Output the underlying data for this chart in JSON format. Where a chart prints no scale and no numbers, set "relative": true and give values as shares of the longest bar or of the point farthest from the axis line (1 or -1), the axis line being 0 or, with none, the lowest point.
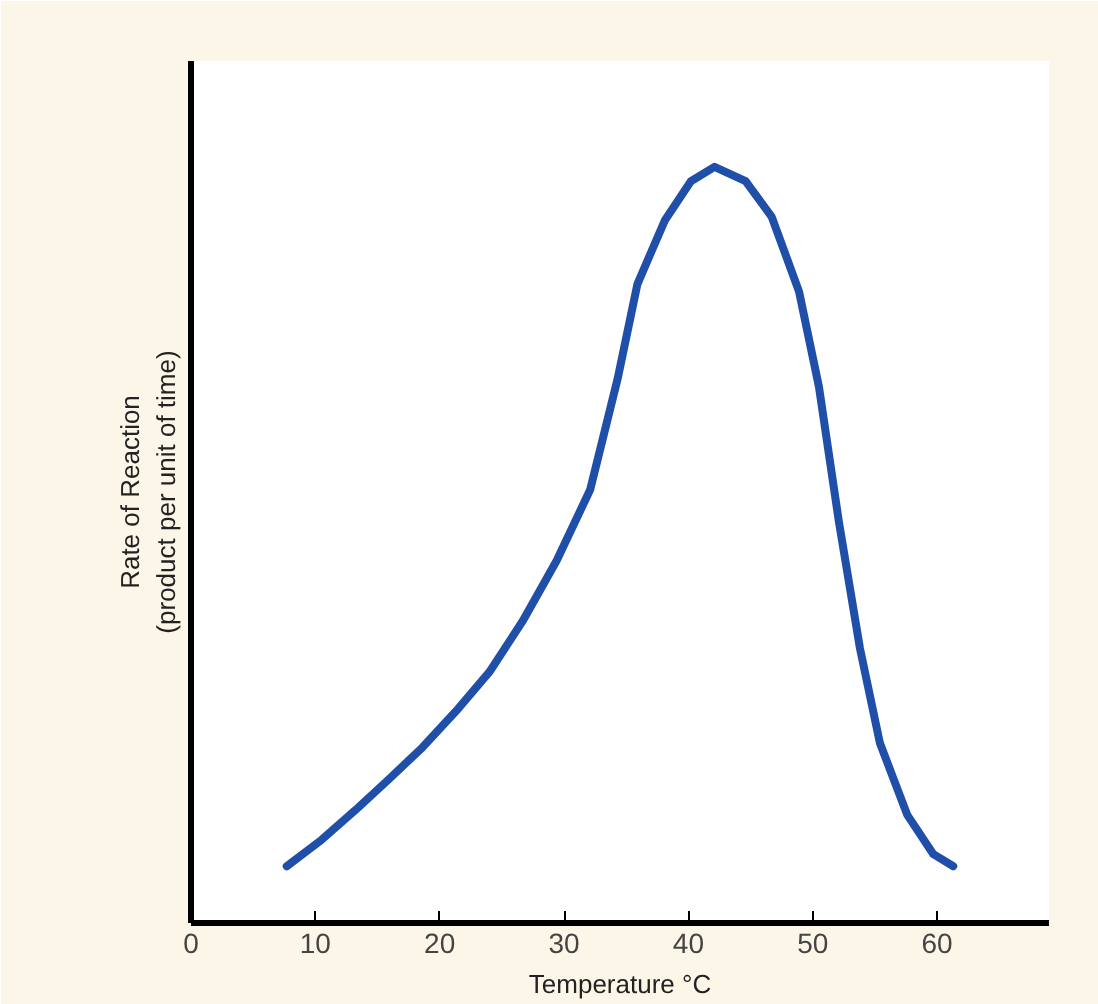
{
  "chart_data": {
    "type": "line",
    "relative": true,
    "xlabel": "Temperature °C",
    "ylabel": "Rate of Reaction\n(product per unit of time)",
    "xlim": [
      0,
      69
    ],
    "xticks": [
      0,
      10,
      20,
      30,
      40,
      50,
      60
    ],
    "grid": false,
    "marker": "none",
    "line_style": "solid",
    "series": [
      {
        "color": "#1f4fa8",
        "x": [
          7.7,
          10.5,
          13.2,
          15.9,
          18.6,
          21.3,
          24.0,
          26.7,
          29.4,
          32.1,
          34.3,
          35.9,
          38.1,
          40.2,
          42.1,
          44.6,
          46.7,
          48.9,
          50.5,
          52.1,
          53.8,
          55.4,
          57.6,
          59.7,
          61.3
        ],
        "values": [
          0.075,
          0.11,
          0.149,
          0.19,
          0.232,
          0.28,
          0.332,
          0.4,
          0.479,
          0.573,
          0.719,
          0.845,
          0.929,
          0.981,
          1.0,
          0.981,
          0.934,
          0.835,
          0.709,
          0.531,
          0.363,
          0.238,
          0.143,
          0.091,
          0.075
        ]
      }
    ]
  }
}
